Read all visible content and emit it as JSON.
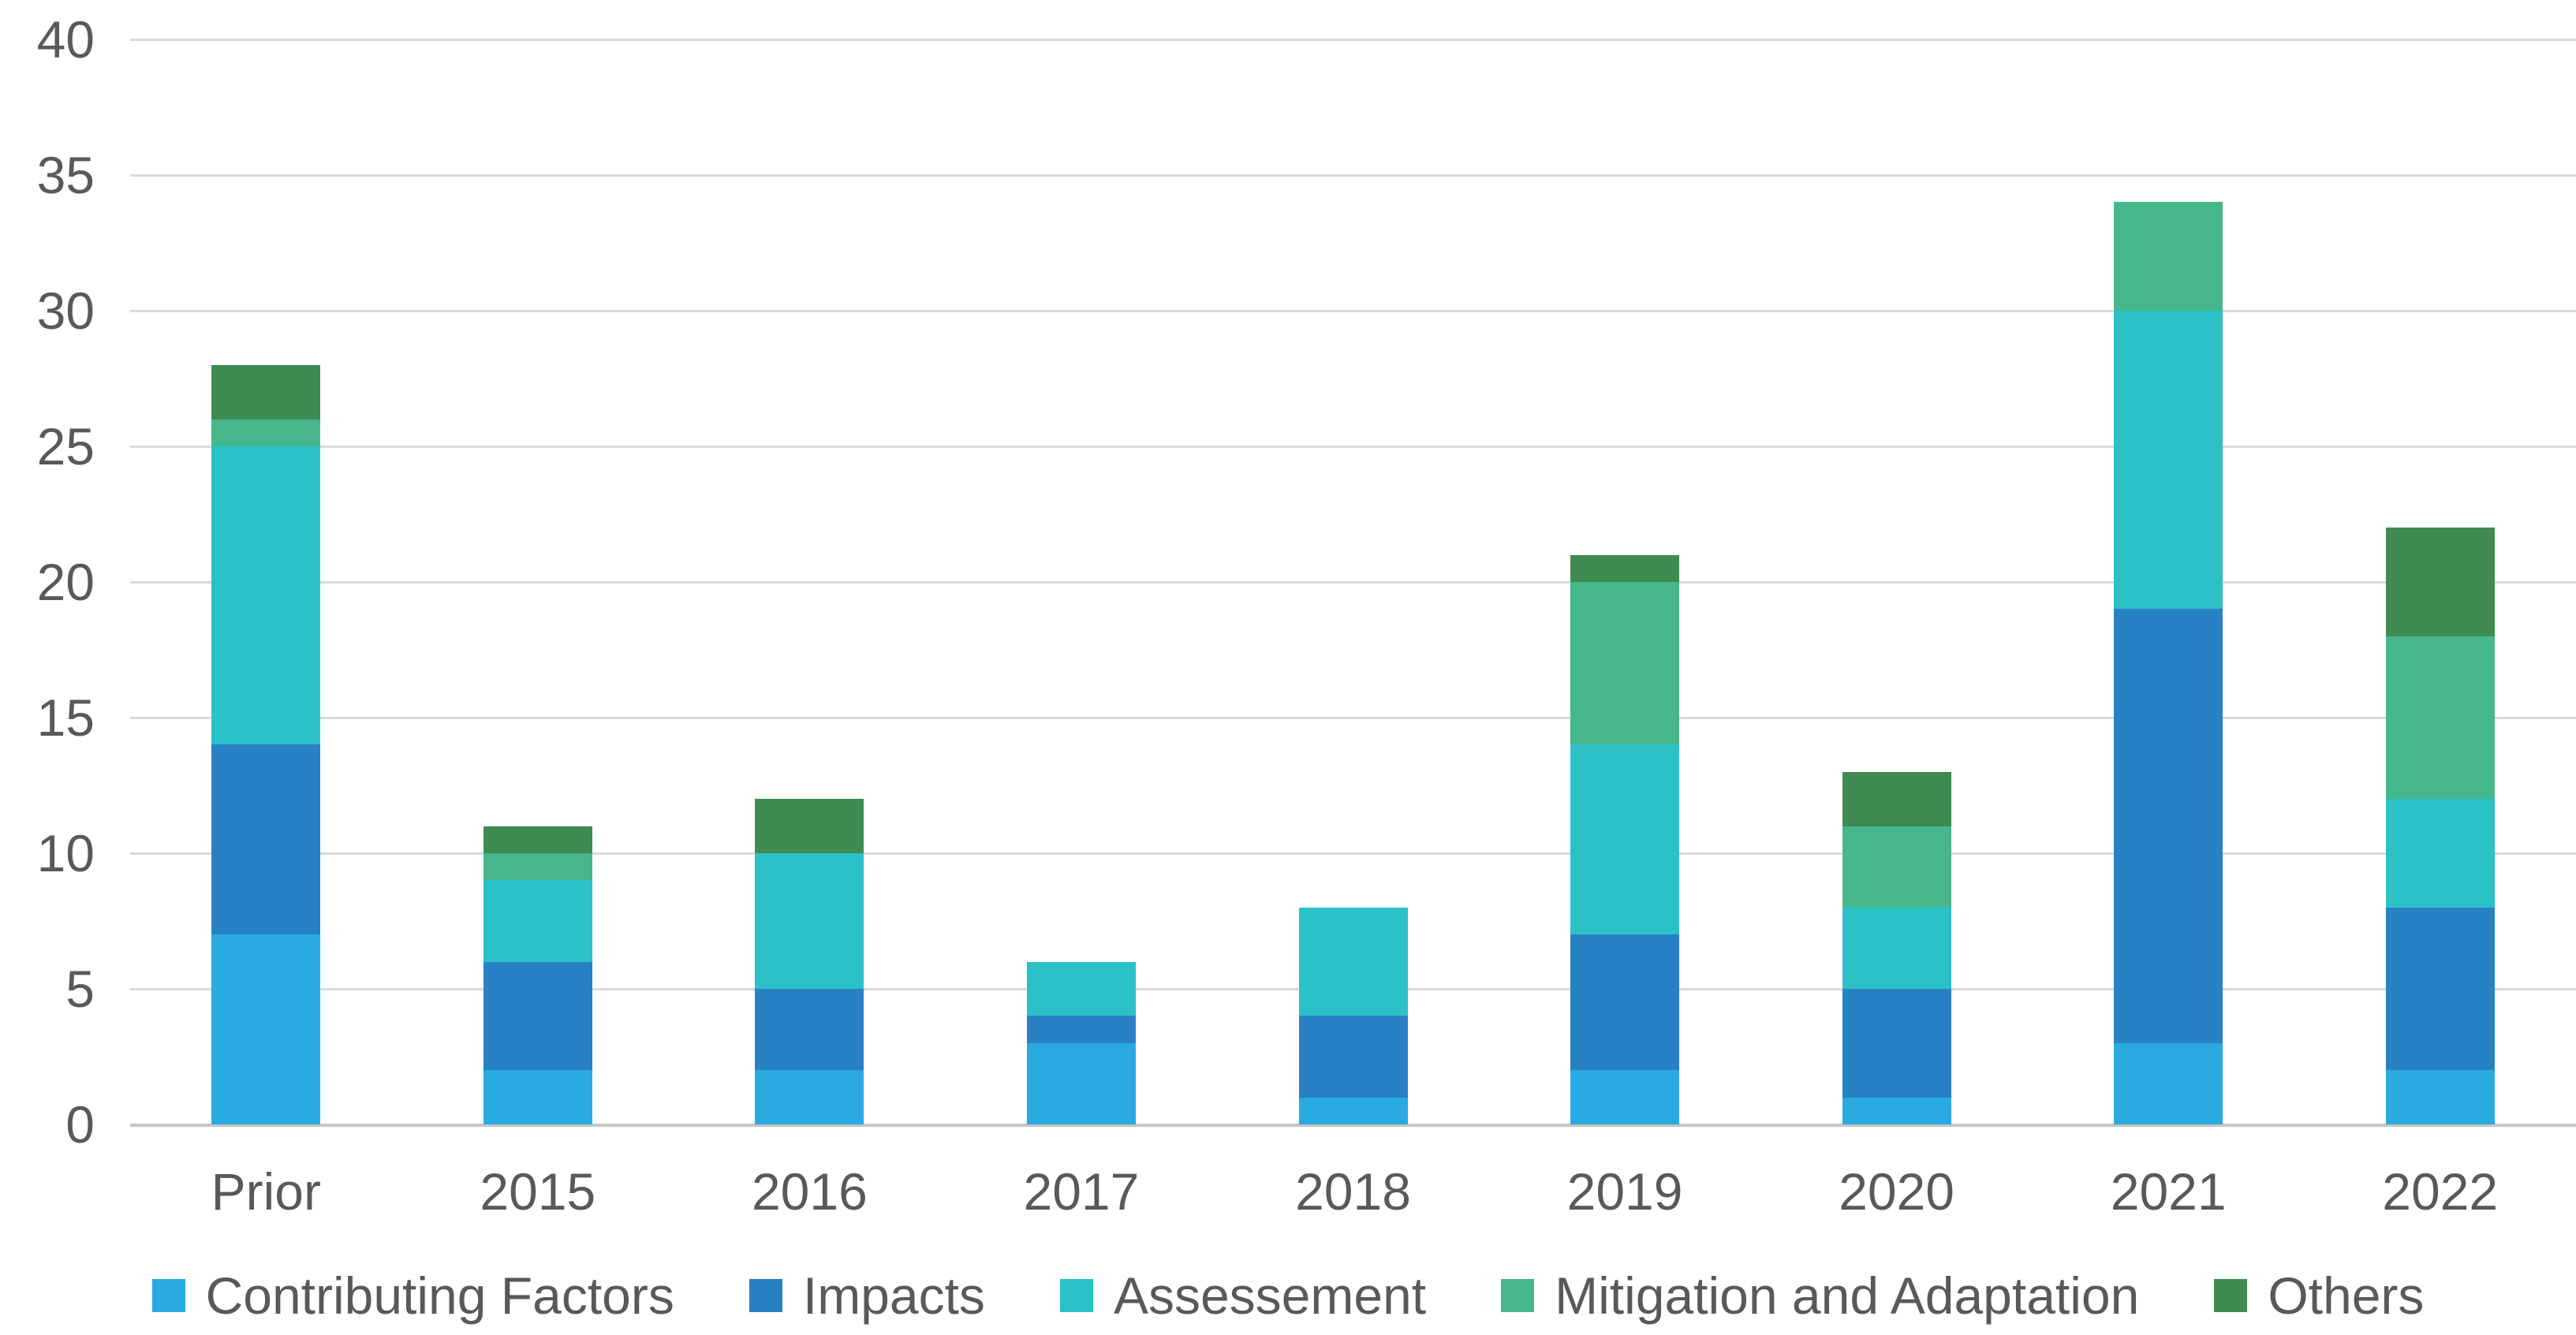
{
  "chart_data": {
    "type": "bar",
    "stacked": true,
    "orientation": "vertical",
    "categories": [
      "Prior",
      "2015",
      "2016",
      "2017",
      "2018",
      "2019",
      "2020",
      "2021",
      "2022"
    ],
    "series": [
      {
        "name": "Contributing Factors",
        "color": "#29ABE2",
        "values": [
          7,
          2,
          2,
          3,
          1,
          2,
          1,
          3,
          2
        ]
      },
      {
        "name": "Impacts",
        "color": "#2781C4",
        "values": [
          7,
          4,
          3,
          1,
          3,
          5,
          4,
          16,
          6
        ]
      },
      {
        "name": "Assessement",
        "color": "#2BC1C7",
        "values": [
          11,
          3,
          5,
          2,
          4,
          7,
          3,
          11,
          4
        ]
      },
      {
        "name": "Mitigation and Adaptation",
        "color": "#46B78D",
        "values": [
          1,
          1,
          0,
          0,
          0,
          6,
          3,
          4,
          6
        ]
      },
      {
        "name": "Others",
        "color": "#3F8B52",
        "values": [
          2,
          1,
          2,
          0,
          0,
          1,
          2,
          0,
          4
        ]
      }
    ],
    "ylim": [
      0,
      40
    ],
    "ytick_step": 5,
    "ytick_labels": [
      "0",
      "5",
      "10",
      "15",
      "20",
      "25",
      "30",
      "35",
      "40"
    ],
    "grid": true,
    "legend_position": "bottom"
  },
  "style_colors": {
    "grid": "#D9D9D9",
    "axis_baseline": "#C6C6C6",
    "tick_text": "#595959",
    "background": "#FFFFFF"
  }
}
